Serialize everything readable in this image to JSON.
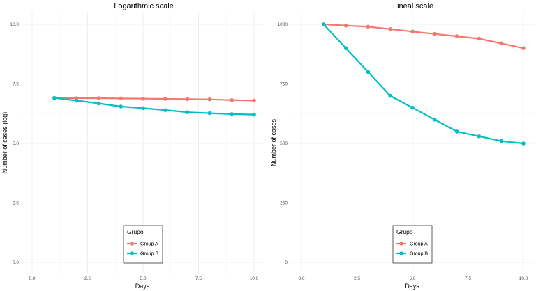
{
  "chart_data": [
    {
      "type": "line",
      "title": "Logarithmic scale",
      "xlabel": "Days",
      "ylabel": "Number of cases (log)",
      "xlim": [
        0,
        10
      ],
      "ylim": [
        0,
        10
      ],
      "xticks": [
        0,
        2.5,
        5,
        7.5,
        10
      ],
      "xtick_labels": [
        "0.0",
        "2.5",
        "5.0",
        "7.5",
        "10.0"
      ],
      "yticks": [
        0,
        2.5,
        5,
        7.5,
        10
      ],
      "ytick_labels": [
        "0.0",
        "2.5",
        "5.0",
        "7.5",
        "10.0"
      ],
      "grid": true,
      "legend": {
        "title": "Grupo",
        "placement": "bottom-center"
      },
      "x": [
        1,
        2,
        3,
        4,
        5,
        6,
        7,
        8,
        9,
        10
      ],
      "series": [
        {
          "name": "Group A",
          "color": "#F8766D",
          "values": [
            6.91,
            6.9,
            6.9,
            6.89,
            6.88,
            6.87,
            6.86,
            6.85,
            6.82,
            6.8
          ]
        },
        {
          "name": "Group B",
          "color": "#00BFC4",
          "values": [
            6.91,
            6.8,
            6.68,
            6.55,
            6.48,
            6.4,
            6.31,
            6.27,
            6.23,
            6.21
          ]
        }
      ]
    },
    {
      "type": "line",
      "title": "Lineal scale",
      "xlabel": "Days",
      "ylabel": "Number of cases",
      "xlim": [
        0,
        10
      ],
      "ylim": [
        0,
        1000
      ],
      "xticks": [
        0,
        2.5,
        5,
        7.5,
        10
      ],
      "xtick_labels": [
        "0.0",
        "2.5",
        "5.0",
        "7.5",
        "10.0"
      ],
      "yticks": [
        0,
        250,
        500,
        750,
        1000
      ],
      "ytick_labels": [
        "0",
        "250",
        "500",
        "750",
        "1000"
      ],
      "grid": true,
      "legend": {
        "title": "Grupo",
        "placement": "bottom-center"
      },
      "x": [
        1,
        2,
        3,
        4,
        5,
        6,
        7,
        8,
        9,
        10
      ],
      "series": [
        {
          "name": "Group A",
          "color": "#F8766D",
          "values": [
            1000,
            995,
            990,
            980,
            970,
            960,
            950,
            940,
            920,
            900
          ]
        },
        {
          "name": "Group B",
          "color": "#00BFC4",
          "values": [
            1000,
            900,
            800,
            700,
            650,
            600,
            550,
            530,
            510,
            500
          ]
        }
      ]
    }
  ]
}
